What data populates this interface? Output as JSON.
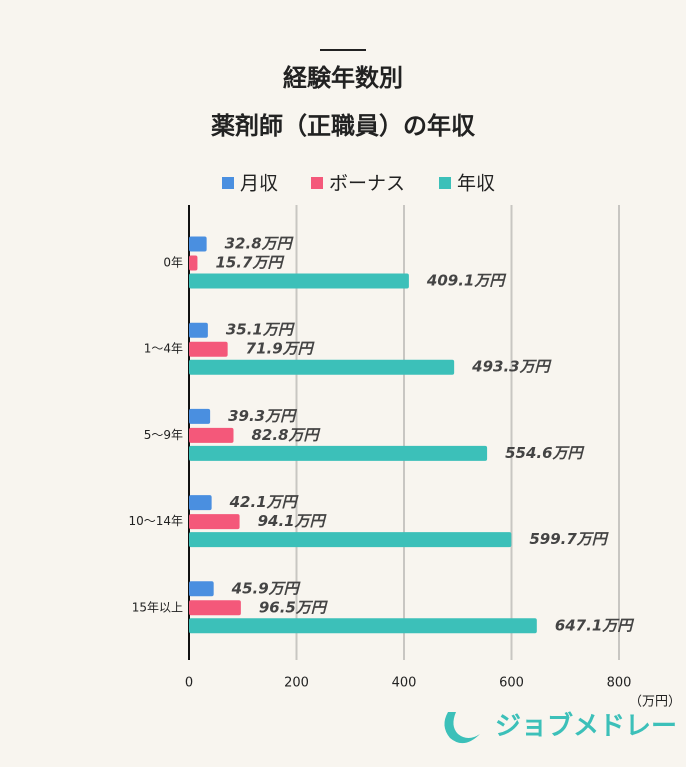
{
  "chart_data": {
    "type": "bar",
    "orientation": "horizontal",
    "title": [
      "経験年数別",
      "薬剤師（正職員）の年収"
    ],
    "categories": [
      "0年",
      "1～4年",
      "5～9年",
      "10～14年",
      "15年以上"
    ],
    "series": [
      {
        "name": "月収",
        "color": "#4a8fe0",
        "values": [
          32.8,
          35.1,
          39.3,
          42.1,
          45.9
        ],
        "value_labels": [
          "32.8万円",
          "35.1万円",
          "39.3万円",
          "42.1万円",
          "45.9万円"
        ]
      },
      {
        "name": "ボーナス",
        "color": "#f4587a",
        "values": [
          15.7,
          71.9,
          82.8,
          94.1,
          96.5
        ],
        "value_labels": [
          "15.7万円",
          "71.9万円",
          "82.8万円",
          "94.1万円",
          "96.5万円"
        ]
      },
      {
        "name": "年収",
        "color": "#3cc0b9",
        "values": [
          409.1,
          493.3,
          554.6,
          599.7,
          647.1
        ],
        "value_labels": [
          "409.1万円",
          "493.3万円",
          "554.6万円",
          "599.7万円",
          "647.1万円"
        ]
      }
    ],
    "xlim": [
      0,
      800
    ],
    "xticks": [
      0,
      200,
      400,
      600,
      800
    ],
    "x_unit": "（万円）",
    "grid": true
  },
  "logo": "ジョブメドレー"
}
